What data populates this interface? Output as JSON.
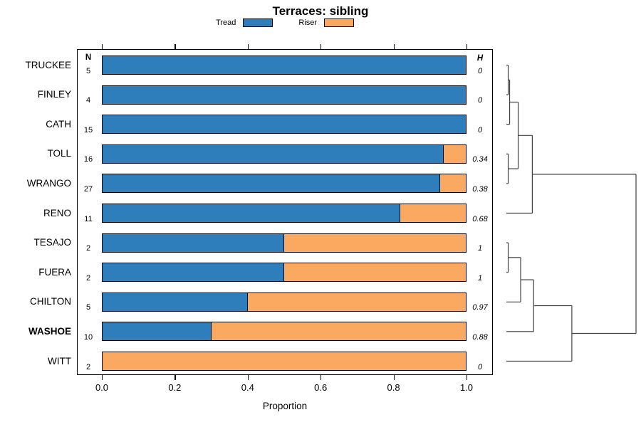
{
  "chart_data": {
    "type": "bar",
    "orientation": "horizontal-stacked",
    "title": "Terraces: sibling",
    "xlabel": "Proportion",
    "x_ticks": [
      "0.0",
      "0.2",
      "0.4",
      "0.6",
      "0.8",
      "1.0"
    ],
    "xlim": [
      0.0,
      1.0
    ],
    "n_header": "N",
    "h_header": "H",
    "legend": [
      {
        "label": "Tread",
        "color": "#2E7EBC"
      },
      {
        "label": "Riser",
        "color": "#FBA961"
      }
    ],
    "legend_position": "top",
    "grid": false,
    "categories": [
      "TRUCKEE",
      "FINLEY",
      "CATH",
      "TOLL",
      "WRANGO",
      "RENO",
      "TESAJO",
      "FUERA",
      "CHILTON",
      "WASHOE",
      "WITT"
    ],
    "rows": [
      {
        "site": "TRUCKEE",
        "n": "5",
        "tread": 1.0,
        "riser": 0.0,
        "h": "0",
        "bold": false
      },
      {
        "site": "FINLEY",
        "n": "4",
        "tread": 1.0,
        "riser": 0.0,
        "h": "0",
        "bold": false
      },
      {
        "site": "CATH",
        "n": "15",
        "tread": 1.0,
        "riser": 0.0,
        "h": "0",
        "bold": false
      },
      {
        "site": "TOLL",
        "n": "16",
        "tread": 0.94,
        "riser": 0.06,
        "h": "0.34",
        "bold": false
      },
      {
        "site": "WRANGO",
        "n": "27",
        "tread": 0.93,
        "riser": 0.07,
        "h": "0.38",
        "bold": false
      },
      {
        "site": "RENO",
        "n": "11",
        "tread": 0.82,
        "riser": 0.18,
        "h": "0.68",
        "bold": false
      },
      {
        "site": "TESAJO",
        "n": "2",
        "tread": 0.5,
        "riser": 0.5,
        "h": "1",
        "bold": false
      },
      {
        "site": "FUERA",
        "n": "2",
        "tread": 0.5,
        "riser": 0.5,
        "h": "1",
        "bold": false
      },
      {
        "site": "CHILTON",
        "n": "5",
        "tread": 0.4,
        "riser": 0.6,
        "h": "0.97",
        "bold": false
      },
      {
        "site": "WASHOE",
        "n": "10",
        "tread": 0.3,
        "riser": 0.7,
        "h": "0.88",
        "bold": true
      },
      {
        "site": "WITT",
        "n": "2",
        "tread": 0.0,
        "riser": 1.0,
        "h": "0",
        "bold": false
      }
    ],
    "dendrogram": {
      "side": "right",
      "leaves": [
        "TRUCKEE",
        "FINLEY",
        "CATH",
        "TOLL",
        "WRANGO",
        "RENO",
        "TESAJO",
        "FUERA",
        "CHILTON",
        "WASHOE",
        "WITT"
      ],
      "merges": [
        {
          "id": "M0",
          "a": "L0",
          "b": "L1",
          "height": 0.014
        },
        {
          "id": "M1",
          "a": "M0",
          "b": "L2",
          "height": 0.025
        },
        {
          "id": "M2",
          "a": "L3",
          "b": "L4",
          "height": 0.014
        },
        {
          "id": "M3",
          "a": "M1",
          "b": "M2",
          "height": 0.091
        },
        {
          "id": "M4",
          "a": "M3",
          "b": "L5",
          "height": 0.2
        },
        {
          "id": "M5",
          "a": "L6",
          "b": "L7",
          "height": 0.014
        },
        {
          "id": "M6",
          "a": "M5",
          "b": "L8",
          "height": 0.11
        },
        {
          "id": "M7",
          "a": "M6",
          "b": "L9",
          "height": 0.21
        },
        {
          "id": "M8",
          "a": "M7",
          "b": "L10",
          "height": 0.505
        },
        {
          "id": "M9",
          "a": "M4",
          "b": "M8",
          "height": 1.0
        }
      ]
    },
    "colors": {
      "tread": "#2E7EBC",
      "riser": "#FBA961",
      "bar_border": "#000000",
      "dendro_line": "#404040"
    }
  }
}
